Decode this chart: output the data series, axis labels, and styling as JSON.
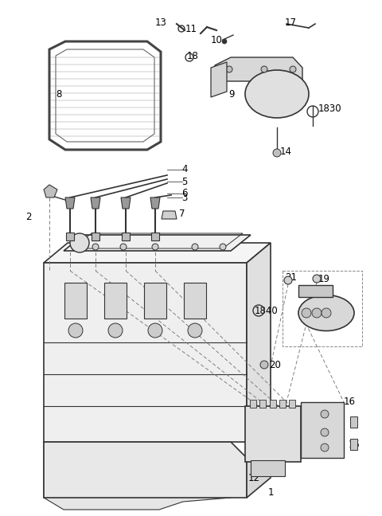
{
  "bg_color": "#ffffff",
  "line_color": "#333333",
  "label_color": "#000000",
  "figsize": [
    4.8,
    6.48
  ],
  "dpi": 100
}
